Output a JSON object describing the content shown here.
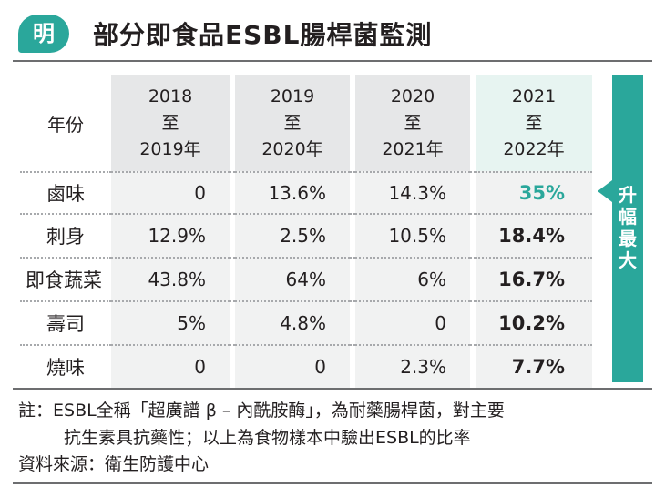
{
  "header": {
    "logo": "明",
    "title": "部分即食品ESBL腸桿菌監測"
  },
  "table": {
    "corner": "年份",
    "columns": [
      {
        "from": "2018",
        "mid": "至",
        "to": "2019年"
      },
      {
        "from": "2019",
        "mid": "至",
        "to": "2020年"
      },
      {
        "from": "2020",
        "mid": "至",
        "to": "2021年"
      },
      {
        "from": "2021",
        "mid": "至",
        "to": "2022年"
      }
    ],
    "rows": [
      {
        "label": "鹵味",
        "values": [
          "0",
          "13.6%",
          "14.3%",
          "35%"
        ]
      },
      {
        "label": "刺身",
        "values": [
          "12.9%",
          "2.5%",
          "10.5%",
          "18.4%"
        ]
      },
      {
        "label": "即食蔬菜",
        "values": [
          "43.8%",
          "64%",
          "6%",
          "16.7%"
        ]
      },
      {
        "label": "壽司",
        "values": [
          "5%",
          "4.8%",
          "0",
          "10.2%"
        ]
      },
      {
        "label": "燒味",
        "values": [
          "0",
          "0",
          "2.3%",
          "7.7%"
        ]
      }
    ]
  },
  "side_badge": {
    "lines": [
      "升",
      "幅",
      "最",
      "大"
    ]
  },
  "notes": {
    "line1": "註：ESBL全稱「超廣譜 β – 內酰胺酶」，為耐藥腸桿菌，對主要",
    "line2": "抗生素具抗藥性；以上為食物樣本中驗出ESBL的比率",
    "source": "資料來源：衛生防護中心"
  },
  "colors": {
    "accent": "#2aa79b",
    "header_cell": "#e6e7e8",
    "highlight_cell": "#e7f4f1",
    "body_cell": "#f1f2f2"
  }
}
